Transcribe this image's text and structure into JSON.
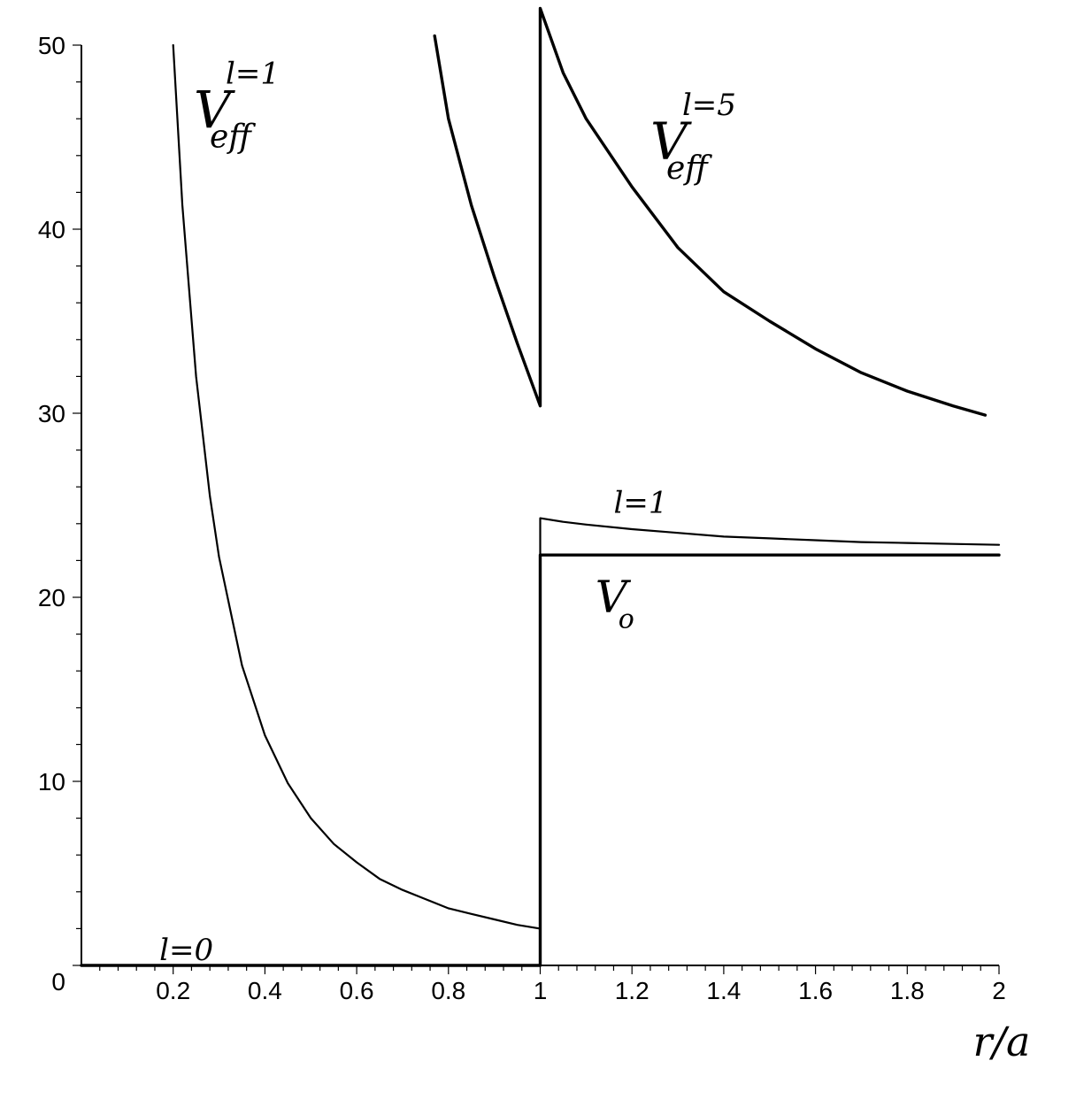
{
  "chart_data": {
    "type": "line",
    "xlabel": "r/a",
    "ylabel": "",
    "xlim": [
      0,
      2
    ],
    "ylim": [
      0,
      50
    ],
    "x_ticks": [
      "0.2",
      "0.4",
      "0.6",
      "0.8",
      "1",
      "1.2",
      "1.4",
      "1.6",
      "1.8",
      "2"
    ],
    "x_tick_values": [
      0.2,
      0.4,
      0.6,
      0.8,
      1,
      1.2,
      1.4,
      1.6,
      1.8,
      2
    ],
    "y_ticks": [
      "0",
      "10",
      "20",
      "30",
      "40",
      "50"
    ],
    "y_tick_values": [
      0,
      10,
      20,
      30,
      40,
      50
    ],
    "grid": false,
    "series": [
      {
        "id": "l0",
        "x": [
          0,
          1,
          1,
          2
        ],
        "y": [
          0,
          0,
          22.3,
          22.3
        ],
        "stroke": "#000000",
        "weight": "thick"
      },
      {
        "id": "l1",
        "x": [
          0.2,
          0.22,
          0.25,
          0.28,
          0.3,
          0.35,
          0.4,
          0.45,
          0.5,
          0.55,
          0.6,
          0.65,
          0.7,
          0.75,
          0.8,
          0.85,
          0.9,
          0.95,
          1.0,
          1.0,
          1.05,
          1.1,
          1.2,
          1.3,
          1.4,
          1.5,
          1.6,
          1.7,
          1.8,
          1.9,
          2.0
        ],
        "y": [
          50,
          41.3,
          32.0,
          25.5,
          22.2,
          16.3,
          12.5,
          9.9,
          8.0,
          6.6,
          5.6,
          4.7,
          4.1,
          3.6,
          3.1,
          2.8,
          2.5,
          2.2,
          2.0,
          24.3,
          24.1,
          23.95,
          23.7,
          23.5,
          23.3,
          23.2,
          23.1,
          23.0,
          22.95,
          22.9,
          22.85
        ],
        "stroke": "#000000",
        "weight": "thin"
      },
      {
        "id": "l5",
        "x": [
          0.77,
          0.8,
          0.85,
          0.9,
          0.95,
          1.0,
          1.0,
          1.05,
          1.1,
          1.2,
          1.3,
          1.4,
          1.5,
          1.6,
          1.7,
          1.8,
          1.9,
          1.97
        ],
        "y": [
          50.5,
          46.0,
          41.3,
          37.4,
          33.8,
          30.4,
          52.0,
          48.5,
          46.0,
          42.3,
          39.0,
          36.6,
          35.0,
          33.5,
          32.2,
          31.2,
          30.4,
          29.9
        ],
        "stroke": "#000000",
        "weight": "thick"
      }
    ],
    "annotations": [
      {
        "id": "veff-l1",
        "base": "V",
        "sub": "eff",
        "sup": "l=1",
        "x": 0.245,
        "y": 45.5
      },
      {
        "id": "veff-l5",
        "base": "V",
        "sub": "eff",
        "sup": "l=5",
        "x": 1.24,
        "y": 43.8
      },
      {
        "id": "label-l1",
        "text": "l=1",
        "x": 1.16,
        "y": 24.6
      },
      {
        "id": "label-v0",
        "text": "V",
        "sub": "o",
        "x": 1.12,
        "y": 19.2
      },
      {
        "id": "label-l0",
        "text": "l=0",
        "x": 0.17,
        "y": 0.3
      }
    ]
  }
}
